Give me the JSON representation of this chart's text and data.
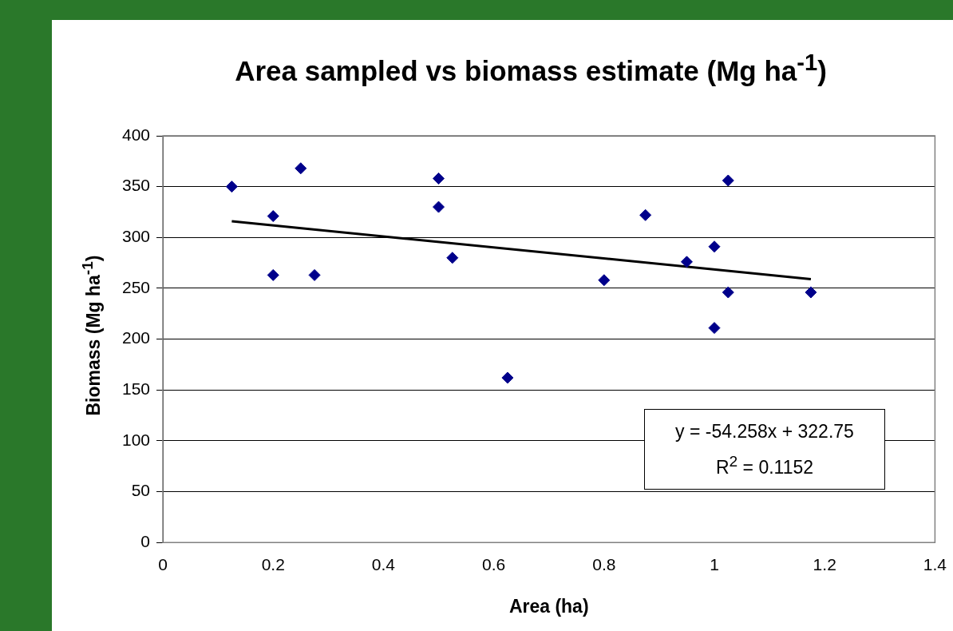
{
  "chart_data": {
    "type": "scatter",
    "title": "Area sampled vs biomass estimate (Mg ha$^{-1}$)",
    "xlabel": "Area (ha)",
    "ylabel": "Biomass (Mg ha$^{-1}$)",
    "series": [
      {
        "color": "#00008b",
        "x": [
          0.125,
          0.2,
          0.2,
          0.25,
          0.275,
          0.5,
          0.5,
          0.525,
          0.625,
          0.8,
          0.875,
          0.95,
          1.0,
          1.0,
          1.025,
          1.025,
          1.175
        ],
        "values": [
          350,
          321,
          263,
          368,
          263,
          358,
          330,
          280,
          162,
          258,
          322,
          276,
          291,
          211,
          356,
          246,
          246
        ]
      },
      {
        "type": "line",
        "marker": "none",
        "color": "#000000",
        "x": [
          0.125,
          1.175
        ],
        "values": [
          316,
          259
        ]
      }
    ],
    "xlim": [
      0,
      1.4
    ],
    "xticks": [
      0,
      0.2,
      0.4,
      0.6,
      0.8,
      1,
      1.2,
      1.4
    ],
    "ylim": [
      0,
      400
    ],
    "yticks": [
      0,
      50,
      100,
      150,
      200,
      250,
      300,
      350,
      400
    ],
    "grid": "y",
    "legend": false,
    "marker": "diamond",
    "annotations": [
      "y = -54.258x + 322.75",
      "R$^{2}$ = 0.1152"
    ]
  }
}
